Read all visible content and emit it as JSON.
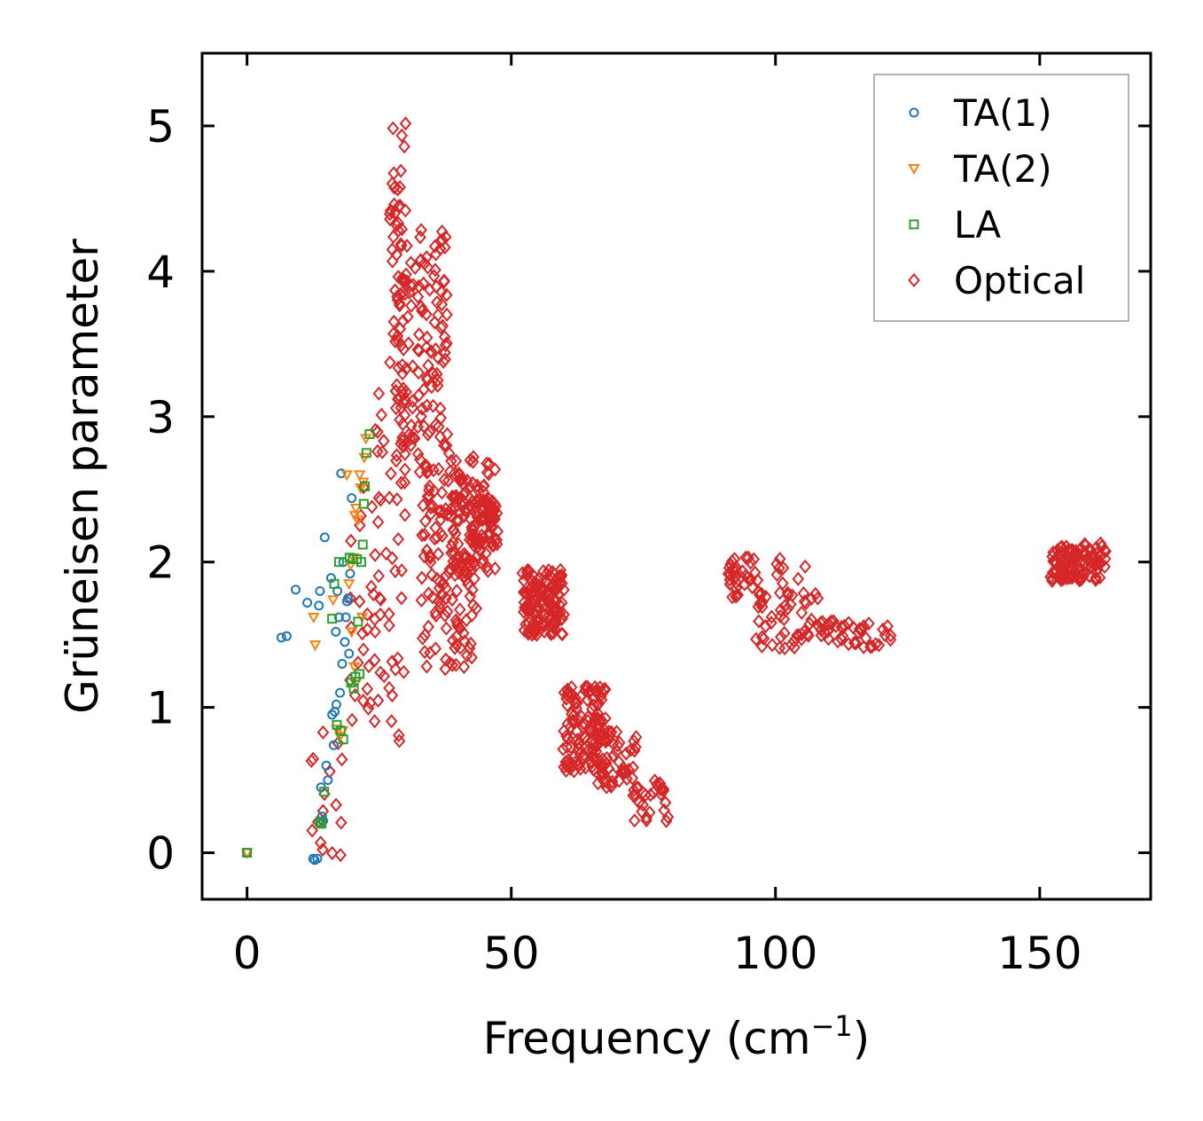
{
  "chart_data": {
    "type": "scatter",
    "title": "",
    "xlabel": "Frequency (cm",
    "xlabel_sup": "−1",
    "xlabel_end": ")",
    "ylabel": "Grüneisen parameter",
    "xlim": [
      -8.5,
      171
    ],
    "ylim": [
      -0.32,
      5.5
    ],
    "x_ticks": [
      0,
      50,
      100,
      150
    ],
    "x_tick_labels": [
      "0",
      "50",
      "100",
      "150"
    ],
    "y_ticks": [
      0,
      1,
      2,
      3,
      4,
      5
    ],
    "y_tick_labels": [
      "0",
      "1",
      "2",
      "3",
      "4",
      "5"
    ],
    "legend_position": "top-right",
    "grid": false,
    "series": [
      {
        "name": "TA(1)",
        "marker": "circle",
        "color": "#1f77b4",
        "points": [
          [
            0,
            0
          ],
          [
            6.5,
            1.48
          ],
          [
            7.5,
            1.49
          ],
          [
            9.2,
            1.81
          ],
          [
            11.4,
            1.72
          ],
          [
            12.5,
            -0.04
          ],
          [
            12.8,
            -0.05
          ],
          [
            13.3,
            -0.04
          ],
          [
            13.6,
            1.7
          ],
          [
            13.8,
            1.8
          ],
          [
            14.0,
            0.45
          ],
          [
            14.2,
            0.25
          ],
          [
            14.4,
            0.22
          ],
          [
            14.7,
            2.17
          ],
          [
            15.0,
            0.6
          ],
          [
            15.3,
            0.5
          ],
          [
            15.9,
            1.89
          ],
          [
            16.1,
            0.95
          ],
          [
            16.4,
            0.74
          ],
          [
            16.6,
            0.97
          ],
          [
            16.8,
            1.52
          ],
          [
            16.9,
            1.02
          ],
          [
            17.1,
            1.8
          ],
          [
            17.4,
            1.62
          ],
          [
            17.6,
            1.1
          ],
          [
            17.8,
            2.61
          ],
          [
            18.0,
            1.3
          ],
          [
            18.2,
            2.0
          ],
          [
            18.5,
            1.45
          ],
          [
            18.7,
            1.62
          ],
          [
            18.9,
            1.73
          ],
          [
            19.1,
            1.75
          ],
          [
            19.3,
            1.37
          ],
          [
            19.5,
            1.92
          ],
          [
            19.8,
            2.44
          ]
        ]
      },
      {
        "name": "TA(2)",
        "marker": "triangle-down",
        "color": "#ff7f0e",
        "points": [
          [
            0,
            0
          ],
          [
            12.6,
            1.62
          ],
          [
            12.9,
            1.43
          ],
          [
            16.3,
            1.74
          ],
          [
            17.0,
            0.85
          ],
          [
            17.6,
            0.8
          ],
          [
            18.1,
            0.84
          ],
          [
            18.9,
            2.6
          ],
          [
            19.3,
            1.85
          ],
          [
            19.6,
            1.98
          ],
          [
            19.8,
            1.52
          ],
          [
            20.1,
            2.03
          ],
          [
            20.3,
            1.28
          ],
          [
            20.4,
            2.32
          ],
          [
            20.6,
            2.37
          ],
          [
            20.8,
            1.18
          ],
          [
            21.0,
            2.29
          ],
          [
            21.3,
            2.6
          ],
          [
            21.5,
            2.51
          ],
          [
            21.8,
            1.62
          ],
          [
            22.0,
            2.55
          ],
          [
            22.2,
            2.72
          ],
          [
            22.5,
            2.85
          ]
        ]
      },
      {
        "name": "LA",
        "marker": "square",
        "color": "#2ca02c",
        "points": [
          [
            0,
            0
          ],
          [
            13.8,
            0.21
          ],
          [
            14.1,
            0.2
          ],
          [
            14.6,
            0.42
          ],
          [
            16.1,
            1.61
          ],
          [
            16.5,
            1.85
          ],
          [
            17.0,
            0.88
          ],
          [
            17.4,
            2.0
          ],
          [
            17.7,
            0.84
          ],
          [
            18.2,
            0.78
          ],
          [
            19.4,
            2.03
          ],
          [
            19.7,
            1.17
          ],
          [
            20.0,
            2.02
          ],
          [
            20.2,
            1.13
          ],
          [
            20.5,
            1.21
          ],
          [
            20.8,
            2.02
          ],
          [
            21.0,
            1.59
          ],
          [
            21.3,
            1.23
          ],
          [
            21.6,
            2.0
          ],
          [
            21.9,
            2.12
          ],
          [
            22.1,
            2.4
          ],
          [
            22.3,
            2.52
          ],
          [
            22.6,
            2.75
          ],
          [
            23.2,
            2.88
          ]
        ]
      },
      {
        "name": "Optical",
        "marker": "diamond",
        "color": "#d62728",
        "clusters": [
          {
            "x": [
              11.5,
              19.5
            ],
            "y": [
              -0.05,
              0.9
            ],
            "n": 16,
            "seed": 11
          },
          {
            "x": [
              19.5,
              30.0
            ],
            "y": [
              0.7,
              2.6
            ],
            "n": 60,
            "seed": 12
          },
          {
            "x": [
              24.0,
              30.0
            ],
            "y": [
              2.6,
              3.5
            ],
            "n": 18,
            "seed": 13
          },
          {
            "x": [
              27.0,
              30.5
            ],
            "y": [
              3.5,
              5.25
            ],
            "n": 40,
            "seed": 14
          },
          {
            "x": [
              28.0,
              38.0
            ],
            "y": [
              2.6,
              4.3
            ],
            "n": 140,
            "seed": 15
          },
          {
            "x": [
              33.0,
              44.0
            ],
            "y": [
              1.25,
              2.6
            ],
            "n": 120,
            "seed": 16
          },
          {
            "x": [
              38.0,
              47.0
            ],
            "y": [
              1.9,
              2.75
            ],
            "n": 90,
            "seed": 17
          },
          {
            "x": [
              42.0,
              47.5
            ],
            "y": [
              2.1,
              2.45
            ],
            "n": 60,
            "seed": 18
          },
          {
            "x": [
              52.0,
              60.0
            ],
            "y": [
              1.5,
              1.95
            ],
            "n": 140,
            "seed": 19
          },
          {
            "x": [
              59.5,
              68.0
            ],
            "y": [
              0.55,
              1.15
            ],
            "n": 120,
            "seed": 20
          },
          {
            "x": [
              65.0,
              74.0
            ],
            "y": [
              0.45,
              0.85
            ],
            "n": 50,
            "seed": 21
          },
          {
            "x": [
              73.0,
              80.0
            ],
            "y": [
              0.2,
              0.5
            ],
            "n": 30,
            "seed": 22
          },
          {
            "x": [
              91.0,
              97.0
            ],
            "y": [
              1.75,
              2.05
            ],
            "n": 35,
            "seed": 23
          },
          {
            "x": [
              96.0,
              109.0
            ],
            "y": [
              1.4,
              1.8
            ],
            "n": 50,
            "seed": 24
          },
          {
            "x": [
              100.0,
              106.0
            ],
            "y": [
              1.85,
              2.05
            ],
            "n": 8,
            "seed": 25
          },
          {
            "x": [
              108.0,
              122.0
            ],
            "y": [
              1.4,
              1.65
            ],
            "n": 40,
            "seed": 26
          },
          {
            "x": [
              152.0,
              162.5
            ],
            "y": [
              1.87,
              2.13
            ],
            "n": 110,
            "seed": 27
          }
        ]
      }
    ]
  }
}
